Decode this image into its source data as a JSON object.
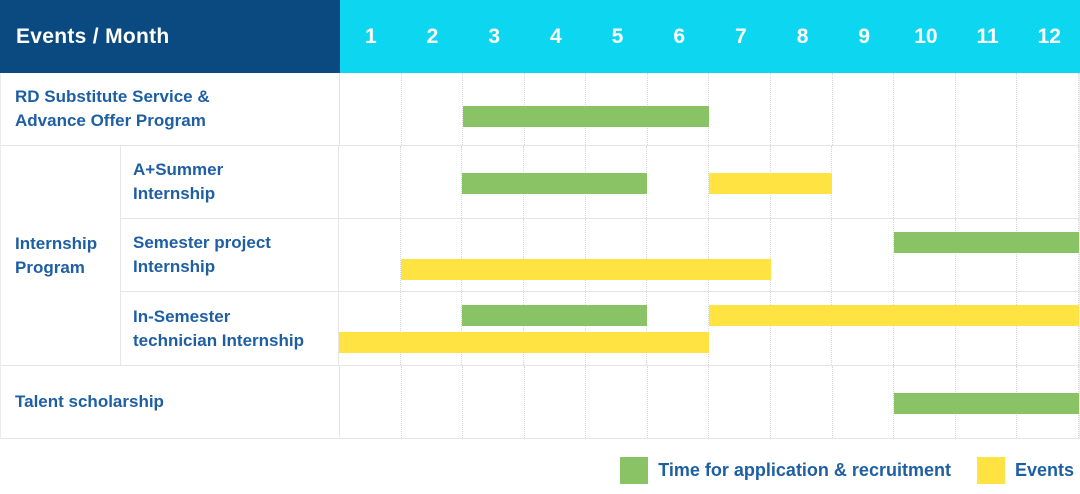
{
  "header": {
    "label": "Events / Month",
    "months": [
      "1",
      "2",
      "3",
      "4",
      "5",
      "6",
      "7",
      "8",
      "9",
      "10",
      "11",
      "12"
    ]
  },
  "colors": {
    "header_navy": "#0b4a80",
    "header_cyan": "#0cd6f0",
    "recruitment_green": "#8ac366",
    "event_yellow": "#ffe342",
    "label_blue": "#1e5fa4"
  },
  "legend": [
    {
      "swatch": "green",
      "label": "Time for application & recruitment"
    },
    {
      "swatch": "yellow",
      "label": "Events"
    }
  ],
  "chart_data": {
    "type": "table",
    "subtype": "gantt-calendar",
    "x_axis": "Month",
    "x_range": [
      1,
      12
    ],
    "group_label": "Internship\nProgram",
    "rows": [
      {
        "label": "RD Substitute Service &\nAdvance Offer Program",
        "group": null,
        "bars": [
          {
            "kind": "recruitment",
            "start_month": 3,
            "end_month": 6,
            "slot": "low"
          }
        ]
      },
      {
        "label": "A+Summer\nInternship",
        "group": "Internship Program",
        "bars": [
          {
            "kind": "recruitment",
            "start_month": 3,
            "end_month": 5,
            "slot": "middle"
          },
          {
            "kind": "event",
            "start_month": 7,
            "end_month": 8,
            "slot": "middle"
          }
        ]
      },
      {
        "label": "Semester project\nInternship",
        "group": "Internship Program",
        "bars": [
          {
            "kind": "recruitment",
            "start_month": 10,
            "end_month": 12,
            "slot": "top"
          },
          {
            "kind": "event",
            "start_month": 2,
            "end_month": 7,
            "slot": "bottom"
          }
        ]
      },
      {
        "label": "In-Semester\ntechnician Internship",
        "group": "Internship Program",
        "bars": [
          {
            "kind": "recruitment",
            "start_month": 3,
            "end_month": 5,
            "slot": "top"
          },
          {
            "kind": "event",
            "start_month": 7,
            "end_month": 12,
            "slot": "top"
          },
          {
            "kind": "event",
            "start_month": 1,
            "end_month": 6,
            "slot": "bottom"
          }
        ]
      },
      {
        "label": "Talent scholarship",
        "group": null,
        "bars": [
          {
            "kind": "recruitment",
            "start_month": 10,
            "end_month": 12,
            "slot": "middle"
          }
        ]
      }
    ],
    "legend": [
      {
        "color_kind": "recruitment",
        "label": "Time for application & recruitment"
      },
      {
        "color_kind": "event",
        "label": "Events"
      }
    ]
  }
}
